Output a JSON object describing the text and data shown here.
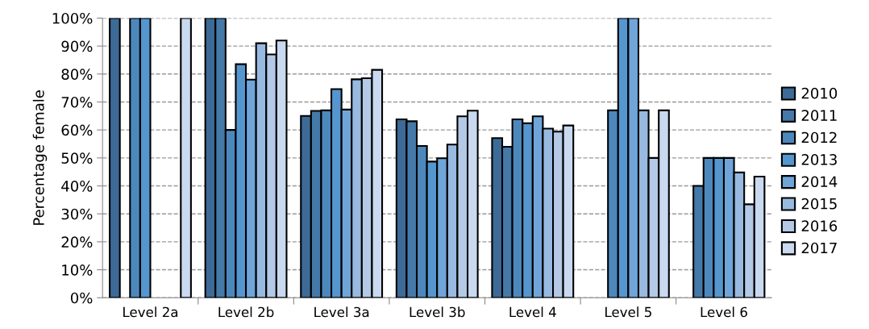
{
  "chart_data": {
    "type": "bar",
    "ylabel": "Percentage female",
    "categories": [
      "Level 2a",
      "Level 2b",
      "Level 3a",
      "Level 3b",
      "Level 4",
      "Level 5",
      "Level 6"
    ],
    "series": [
      {
        "name": "2010",
        "color": "#3d6a96",
        "values": [
          100,
          100,
          65,
          63.8,
          57.1,
          null,
          null
        ]
      },
      {
        "name": "2011",
        "color": "#4579a8",
        "values": [
          null,
          100,
          66.8,
          63.1,
          54,
          null,
          40
        ]
      },
      {
        "name": "2012",
        "color": "#4d88bd",
        "values": [
          100,
          60,
          67,
          54.3,
          63.8,
          67,
          50
        ]
      },
      {
        "name": "2013",
        "color": "#5596cf",
        "values": [
          100,
          83.5,
          74.6,
          48.7,
          62.4,
          100,
          50
        ]
      },
      {
        "name": "2014",
        "color": "#6fa5d9",
        "values": [
          null,
          78,
          67.3,
          49.9,
          64.9,
          100,
          50
        ]
      },
      {
        "name": "2015",
        "color": "#98b9e0",
        "values": [
          null,
          91,
          78.1,
          54.8,
          60.5,
          67,
          44.8
        ]
      },
      {
        "name": "2016",
        "color": "#b3c9e6",
        "values": [
          null,
          87,
          78.5,
          64.9,
          59.4,
          50,
          33.4
        ]
      },
      {
        "name": "2017",
        "color": "#c9d9ef",
        "values": [
          100,
          92,
          81.5,
          66.9,
          61.6,
          67,
          43.3
        ]
      }
    ],
    "ylim": [
      0,
      100
    ],
    "yticks": [
      {
        "value": 0,
        "label": "0%"
      },
      {
        "value": 10,
        "label": "10%"
      },
      {
        "value": 20,
        "label": "20%"
      },
      {
        "value": 30,
        "label": "30%"
      },
      {
        "value": 40,
        "label": "40%"
      },
      {
        "value": 50,
        "label": "50%"
      },
      {
        "value": 60,
        "label": "60%"
      },
      {
        "value": 70,
        "label": "70%"
      },
      {
        "value": 80,
        "label": "80%"
      },
      {
        "value": 90,
        "label": "90%"
      },
      {
        "value": 100,
        "label": "100%"
      }
    ],
    "grid": "y",
    "legend": "right"
  }
}
